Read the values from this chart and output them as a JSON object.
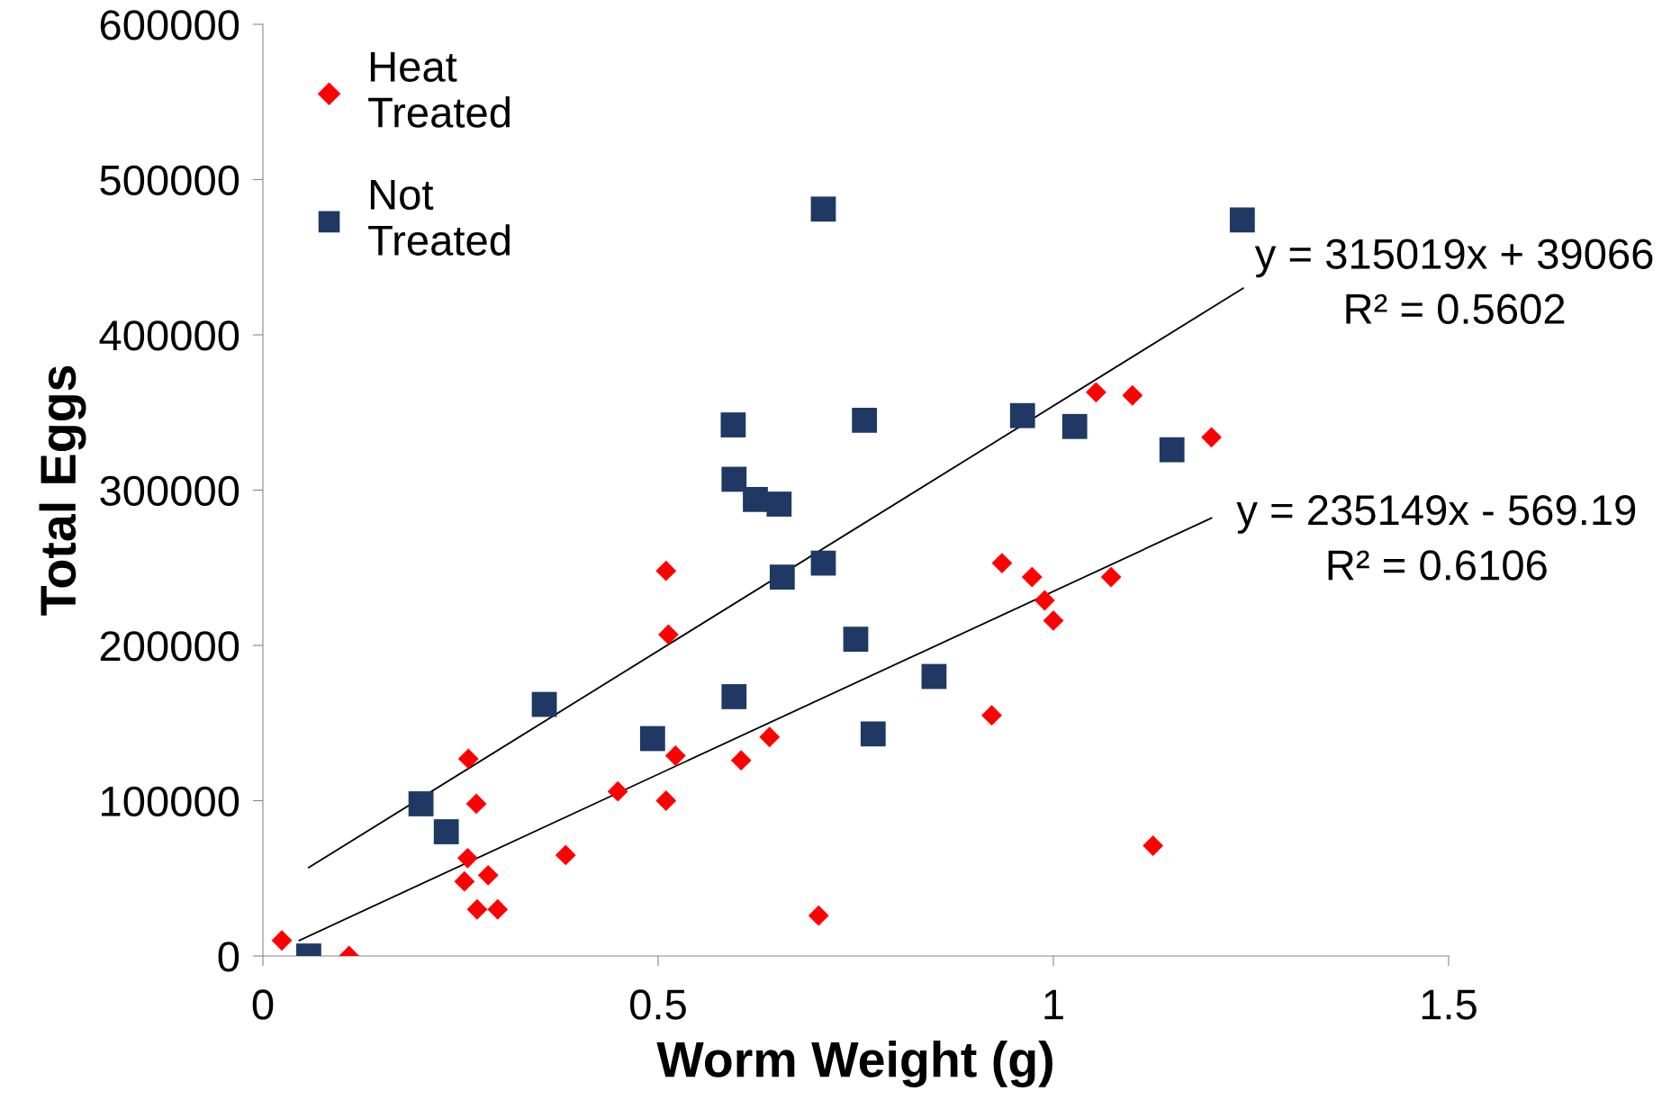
{
  "chart_data": {
    "type": "scatter",
    "xlabel": "Worm Weight (g)",
    "ylabel": "Total Eggs",
    "xlim": [
      0,
      1.5
    ],
    "xticks": [
      0,
      0.5,
      1,
      1.5
    ],
    "ylim": [
      0,
      600000
    ],
    "yticks": [
      0,
      100000,
      200000,
      300000,
      400000,
      500000,
      600000
    ],
    "grid": false,
    "legend": "top left",
    "series": [
      {
        "name": "Heat Treated",
        "color": "#ff0000",
        "marker": "diamond",
        "x": [
          0.024,
          0.109,
          0.26,
          0.27,
          0.259,
          0.255,
          0.285,
          0.271,
          0.297,
          0.383,
          0.449,
          0.51,
          0.513,
          0.51,
          0.522,
          0.605,
          0.641,
          0.703,
          0.854,
          0.922,
          0.935,
          0.973,
          0.989,
          1.0,
          1.054,
          1.1,
          1.073,
          1.126,
          1.2
        ],
        "values": [
          10000,
          0,
          127000,
          98000,
          63000,
          48000,
          52000,
          30000,
          30000,
          65000,
          106000,
          248000,
          207000,
          100000,
          129000,
          126000,
          141000,
          26000,
          null,
          155000,
          253000,
          244000,
          229000,
          216000,
          363000,
          361000,
          244000,
          71000,
          334000
        ]
      },
      {
        "name": "Not Treated",
        "color": "#1f3864",
        "marker": "square",
        "x": [
          0.058,
          0.2,
          0.232,
          0.356,
          0.493,
          0.595,
          0.596,
          0.623,
          0.653,
          0.657,
          0.596,
          0.709,
          0.709,
          0.75,
          0.761,
          0.772,
          0.849,
          0.961,
          1.027,
          1.15,
          1.239
        ],
        "values": [
          0,
          98000,
          80000,
          162000,
          140000,
          342000,
          307000,
          294000,
          291000,
          244000,
          167000,
          481000,
          253000,
          204000,
          345000,
          143000,
          180000,
          348000,
          341000,
          326000,
          474000
        ]
      },
      {
        "type": "line",
        "color": "#000000",
        "x": [
          0.058,
          1.24
        ],
        "values": [
          57000,
          430000
        ]
      },
      {
        "type": "line",
        "color": "#000000",
        "x": [
          0.046,
          1.2
        ],
        "values": [
          10000,
          282000
        ]
      }
    ],
    "annotations": [
      "y = 315019x + 39066\nR² = 0.5602",
      "y = 235149x - 569.19\nR² = 0.6106"
    ]
  }
}
